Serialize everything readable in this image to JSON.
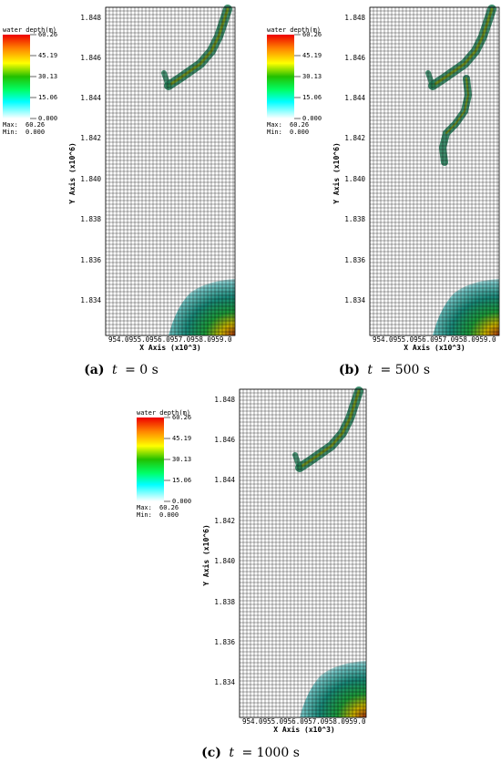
{
  "chart_data": [
    {
      "type": "heatmap",
      "panel_label": "(a)",
      "caption_var": "t",
      "caption_eq": "= 0 s",
      "xlabel": "X Axis (x10^3)",
      "ylabel": "Y Axis (x10^6)",
      "x_tick_labels": [
        "954.0955.0956.0957.0958.0959.0"
      ],
      "y_ticks": [
        "1.848",
        "1.846",
        "1.844",
        "1.842",
        "1.840",
        "1.838",
        "1.836",
        "1.834"
      ],
      "legend": {
        "title": "water depth(m)",
        "ticks": [
          "60.26",
          "45.19",
          "30.13",
          "15.06",
          "0.000"
        ],
        "max_label": "Max:",
        "max_value": "60.26",
        "min_label": "Min:",
        "min_value": "0.000"
      },
      "ylim": [
        1.8325,
        1.8485
      ],
      "depth_range": [
        0.0,
        60.26
      ]
    },
    {
      "type": "heatmap",
      "panel_label": "(b)",
      "caption_var": "t",
      "caption_eq": "= 500 s",
      "xlabel": "X Axis (x10^3)",
      "ylabel": "Y Axis (x10^6)",
      "x_tick_labels": [
        "954.0955.0956.0957.0958.0959.0"
      ],
      "y_ticks": [
        "1.848",
        "1.846",
        "1.844",
        "1.842",
        "1.840",
        "1.838",
        "1.836",
        "1.834"
      ],
      "legend": {
        "title": "water depth(m)",
        "ticks": [
          "60.26",
          "45.19",
          "30.13",
          "15.06",
          "0.000"
        ],
        "max_label": "Max:",
        "max_value": "60.26",
        "min_label": "Min:",
        "min_value": "0.000"
      },
      "ylim": [
        1.8325,
        1.8485
      ],
      "depth_range": [
        0.0,
        60.26
      ]
    },
    {
      "type": "heatmap",
      "panel_label": "(c)",
      "caption_var": "t",
      "caption_eq": "= 1000 s",
      "xlabel": "X Axis (x10^3)",
      "ylabel": "Y Axis (x10^6)",
      "x_tick_labels": [
        "954.0955.0956.0957.0958.0959.0"
      ],
      "y_ticks": [
        "1.848",
        "1.846",
        "1.844",
        "1.842",
        "1.840",
        "1.838",
        "1.836",
        "1.834"
      ],
      "legend": {
        "title": "water depth(m)",
        "ticks": [
          "60.26",
          "45.19",
          "30.13",
          "15.06",
          "0.000"
        ],
        "max_label": "Max:",
        "max_value": "60.26",
        "min_label": "Min:",
        "min_value": "0.000"
      },
      "ylim": [
        1.8325,
        1.8485
      ],
      "depth_range": [
        0.0,
        60.26
      ]
    }
  ],
  "colors": {
    "ramp": [
      "#ffffff",
      "#00ffff",
      "#00ff66",
      "#22c000",
      "#ffff00",
      "#ff8800",
      "#ee0000"
    ],
    "mesh_line": "#000000",
    "river": "#2e8b57",
    "river_core": "#7a5a18"
  }
}
